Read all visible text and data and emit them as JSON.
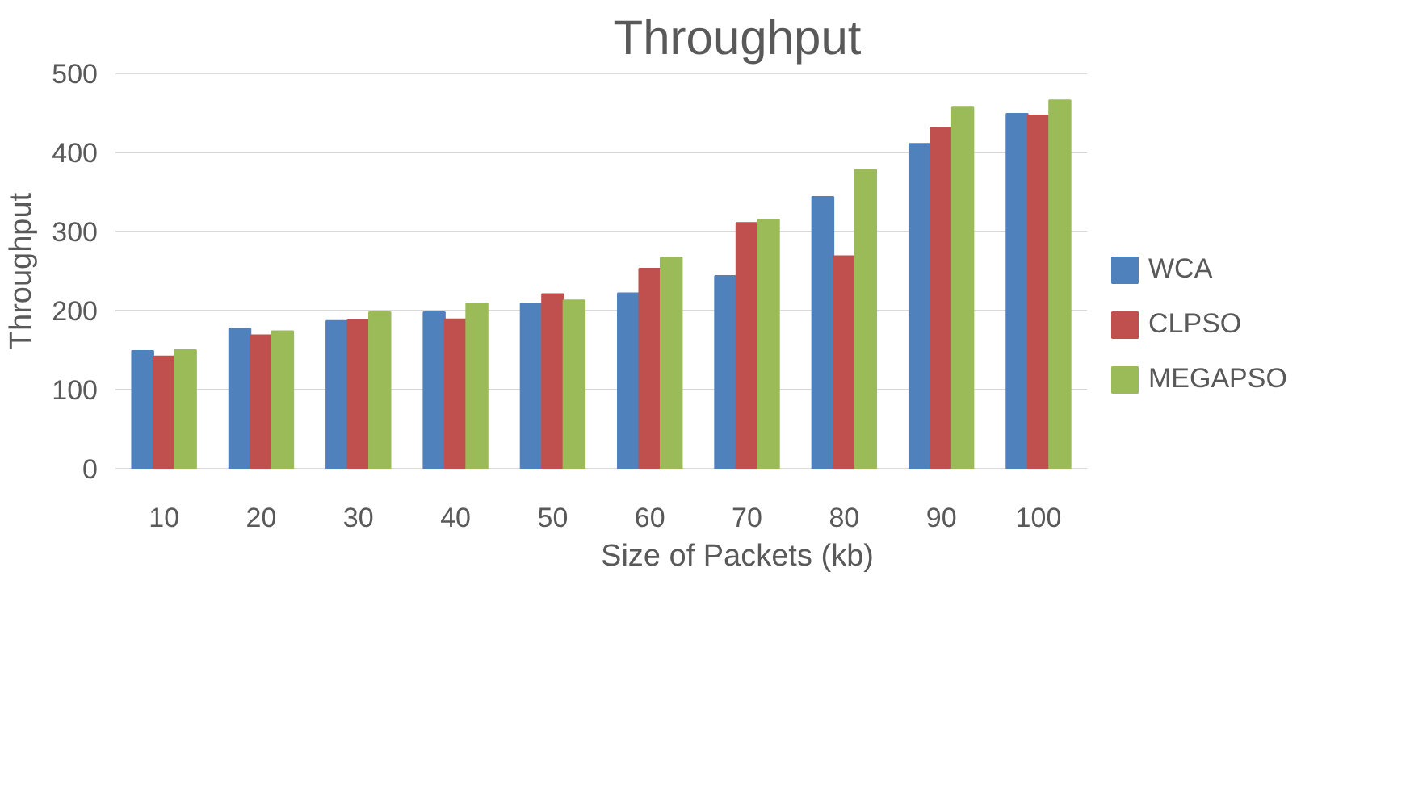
{
  "chart_data": {
    "type": "bar",
    "title": "Throughput",
    "xlabel": "Size of Packets (kb)",
    "ylabel": "Throughput",
    "categories": [
      "10",
      "20",
      "30",
      "40",
      "50",
      "60",
      "70",
      "80",
      "90",
      "100"
    ],
    "series": [
      {
        "name": "WCA",
        "color": "#4f81bd",
        "values": [
          149,
          177,
          187,
          198,
          209,
          222,
          244,
          344,
          411,
          449
        ]
      },
      {
        "name": "CLPSO",
        "color": "#c0504d",
        "values": [
          142,
          169,
          188,
          189,
          221,
          253,
          311,
          269,
          431,
          447
        ]
      },
      {
        "name": "MEGAPSO",
        "color": "#9bbb59",
        "values": [
          150,
          174,
          198,
          209,
          213,
          267,
          315,
          378,
          457,
          466
        ]
      }
    ],
    "ylim": [
      0,
      500
    ],
    "yticks": [
      0,
      100,
      200,
      300,
      400,
      500
    ],
    "grid": "y",
    "legend": "right"
  }
}
